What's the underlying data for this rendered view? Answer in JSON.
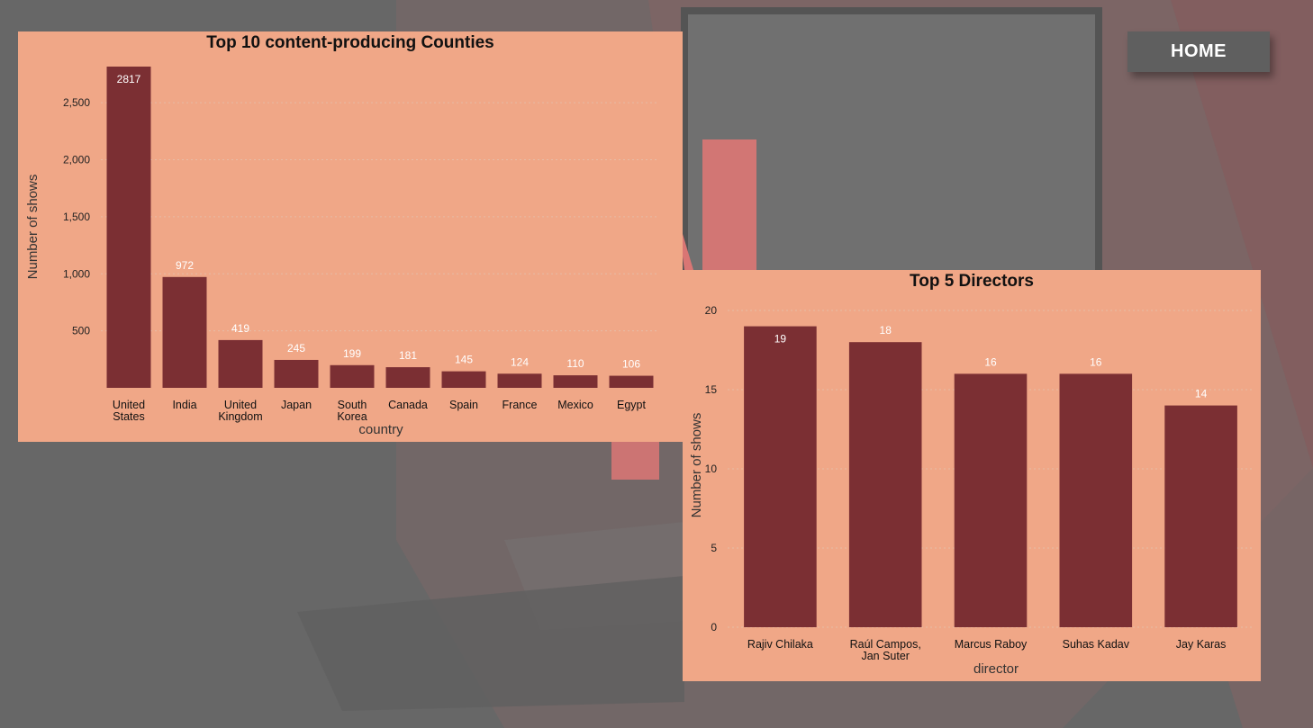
{
  "nav": {
    "home_label": "HOME"
  },
  "colors": {
    "panel": "#f0a787",
    "bar": "#7b2f33",
    "button": "#5f5f5f"
  },
  "chart_data": [
    {
      "type": "bar",
      "title": "Top 10 content-producing Counties",
      "xlabel": "country",
      "ylabel": "Number of shows",
      "categories": [
        "United States",
        "India",
        "United Kingdom",
        "Japan",
        "South Korea",
        "Canada",
        "Spain",
        "France",
        "Mexico",
        "Egypt"
      ],
      "category_lines": [
        [
          "United",
          "States"
        ],
        [
          "India"
        ],
        [
          "United",
          "Kingdom"
        ],
        [
          "Japan"
        ],
        [
          "South",
          "Korea"
        ],
        [
          "Canada"
        ],
        [
          "Spain"
        ],
        [
          "France"
        ],
        [
          "Mexico"
        ],
        [
          "Egypt"
        ]
      ],
      "values": [
        2817,
        972,
        419,
        245,
        199,
        181,
        145,
        124,
        110,
        106
      ],
      "ylim": [
        0,
        2817
      ],
      "yticks": [
        500,
        1000,
        1500,
        2000,
        2500
      ],
      "ytick_labels": [
        "500",
        "1,000",
        "1,500",
        "2,000",
        "2,500"
      ],
      "grid": true
    },
    {
      "type": "bar",
      "title": "Top 5 Directors",
      "xlabel": "director",
      "ylabel": "Number of shows",
      "categories": [
        "Rajiv Chilaka",
        "Raúl Campos, Jan Suter",
        "Marcus Raboy",
        "Suhas Kadav",
        "Jay Karas"
      ],
      "category_lines": [
        [
          "Rajiv Chilaka"
        ],
        [
          "Raúl Campos,",
          "Jan Suter"
        ],
        [
          "Marcus Raboy"
        ],
        [
          "Suhas Kadav"
        ],
        [
          "Jay Karas"
        ]
      ],
      "values": [
        19,
        18,
        16,
        16,
        14
      ],
      "ylim": [
        0,
        20
      ],
      "yticks": [
        0,
        5,
        10,
        15,
        20
      ],
      "ytick_labels": [
        "0",
        "5",
        "10",
        "15",
        "20"
      ],
      "grid": true
    }
  ]
}
